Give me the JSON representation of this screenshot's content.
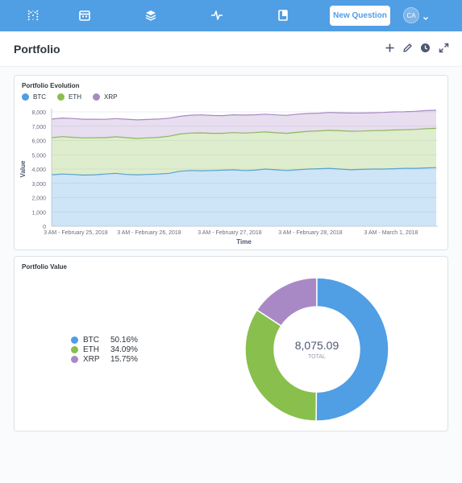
{
  "nav": {
    "new_question": "New Question",
    "avatar_initials": "CA",
    "icons": [
      "metabase-logo-icon",
      "calendar-icon",
      "layers-icon",
      "pulse-icon",
      "notebook-icon"
    ]
  },
  "header": {
    "title": "Portfolio",
    "actions": [
      "add-icon",
      "edit-pencil-icon",
      "history-clock-icon",
      "fullscreen-icon"
    ]
  },
  "evolution": {
    "title": "Portfolio Evolution"
  },
  "value_card": {
    "title": "Portfolio Value",
    "total": "8,075.09",
    "total_label": "TOTAL",
    "legend": [
      {
        "name": "BTC",
        "pct": "50.16%"
      },
      {
        "name": "ETH",
        "pct": "34.09%"
      },
      {
        "name": "XRP",
        "pct": "15.75%"
      }
    ]
  },
  "colors": {
    "brand": "#509ee3",
    "btc": "#509ee3",
    "eth": "#88bf4d",
    "xrp": "#a989c5"
  },
  "chart_data": [
    {
      "type": "area",
      "title": "Portfolio Evolution",
      "xlabel": "Time",
      "ylabel": "Value",
      "stacked": true,
      "ylim": [
        0,
        8000
      ],
      "yticks": [
        0,
        1000,
        2000,
        3000,
        4000,
        5000,
        6000,
        7000,
        8000
      ],
      "ytick_labels": [
        "0",
        "1,000",
        "2,000",
        "3,000",
        "4,000",
        "5,000",
        "6,000",
        "7,000",
        "8,000"
      ],
      "x_tick_labels": [
        "3 AM - February 25, 2018",
        "3 AM - February 26, 2018",
        "3 AM - February 27, 2018",
        "3 AM - February 28, 2018",
        "3 AM - March 1, 2018"
      ],
      "legend_position": "top-left",
      "grid": true,
      "series": [
        {
          "name": "BTC",
          "color": "#509ee3",
          "values": [
            3600,
            3650,
            3620,
            3580,
            3600,
            3650,
            3700,
            3620,
            3600,
            3620,
            3650,
            3700,
            3850,
            3900,
            3880,
            3900,
            3920,
            3950,
            3900,
            3920,
            4000,
            3950,
            3900,
            3950,
            4000,
            4020,
            4050,
            4000,
            3950,
            3980,
            4000,
            4000,
            4020,
            4050,
            4050,
            4080,
            4100
          ]
        },
        {
          "name": "ETH",
          "color": "#88bf4d",
          "values": [
            2600,
            2620,
            2600,
            2600,
            2590,
            2550,
            2560,
            2580,
            2540,
            2560,
            2570,
            2600,
            2600,
            2620,
            2650,
            2600,
            2580,
            2600,
            2620,
            2630,
            2600,
            2590,
            2600,
            2620,
            2640,
            2650,
            2660,
            2680,
            2700,
            2680,
            2690,
            2700,
            2710,
            2700,
            2720,
            2740,
            2750
          ]
        },
        {
          "name": "XRP",
          "color": "#a989c5",
          "values": [
            1300,
            1300,
            1320,
            1310,
            1300,
            1280,
            1270,
            1290,
            1300,
            1290,
            1280,
            1260,
            1240,
            1250,
            1260,
            1250,
            1240,
            1250,
            1260,
            1250,
            1240,
            1250,
            1260,
            1270,
            1250,
            1240,
            1250,
            1260,
            1270,
            1260,
            1250,
            1260,
            1270,
            1260,
            1270,
            1270,
            1270
          ]
        }
      ]
    },
    {
      "type": "pie",
      "title": "Portfolio Value",
      "donut": true,
      "total": 8075.09,
      "categories": [
        "BTC",
        "ETH",
        "XRP"
      ],
      "values": [
        50.16,
        34.09,
        15.75
      ],
      "unit": "%"
    }
  ]
}
